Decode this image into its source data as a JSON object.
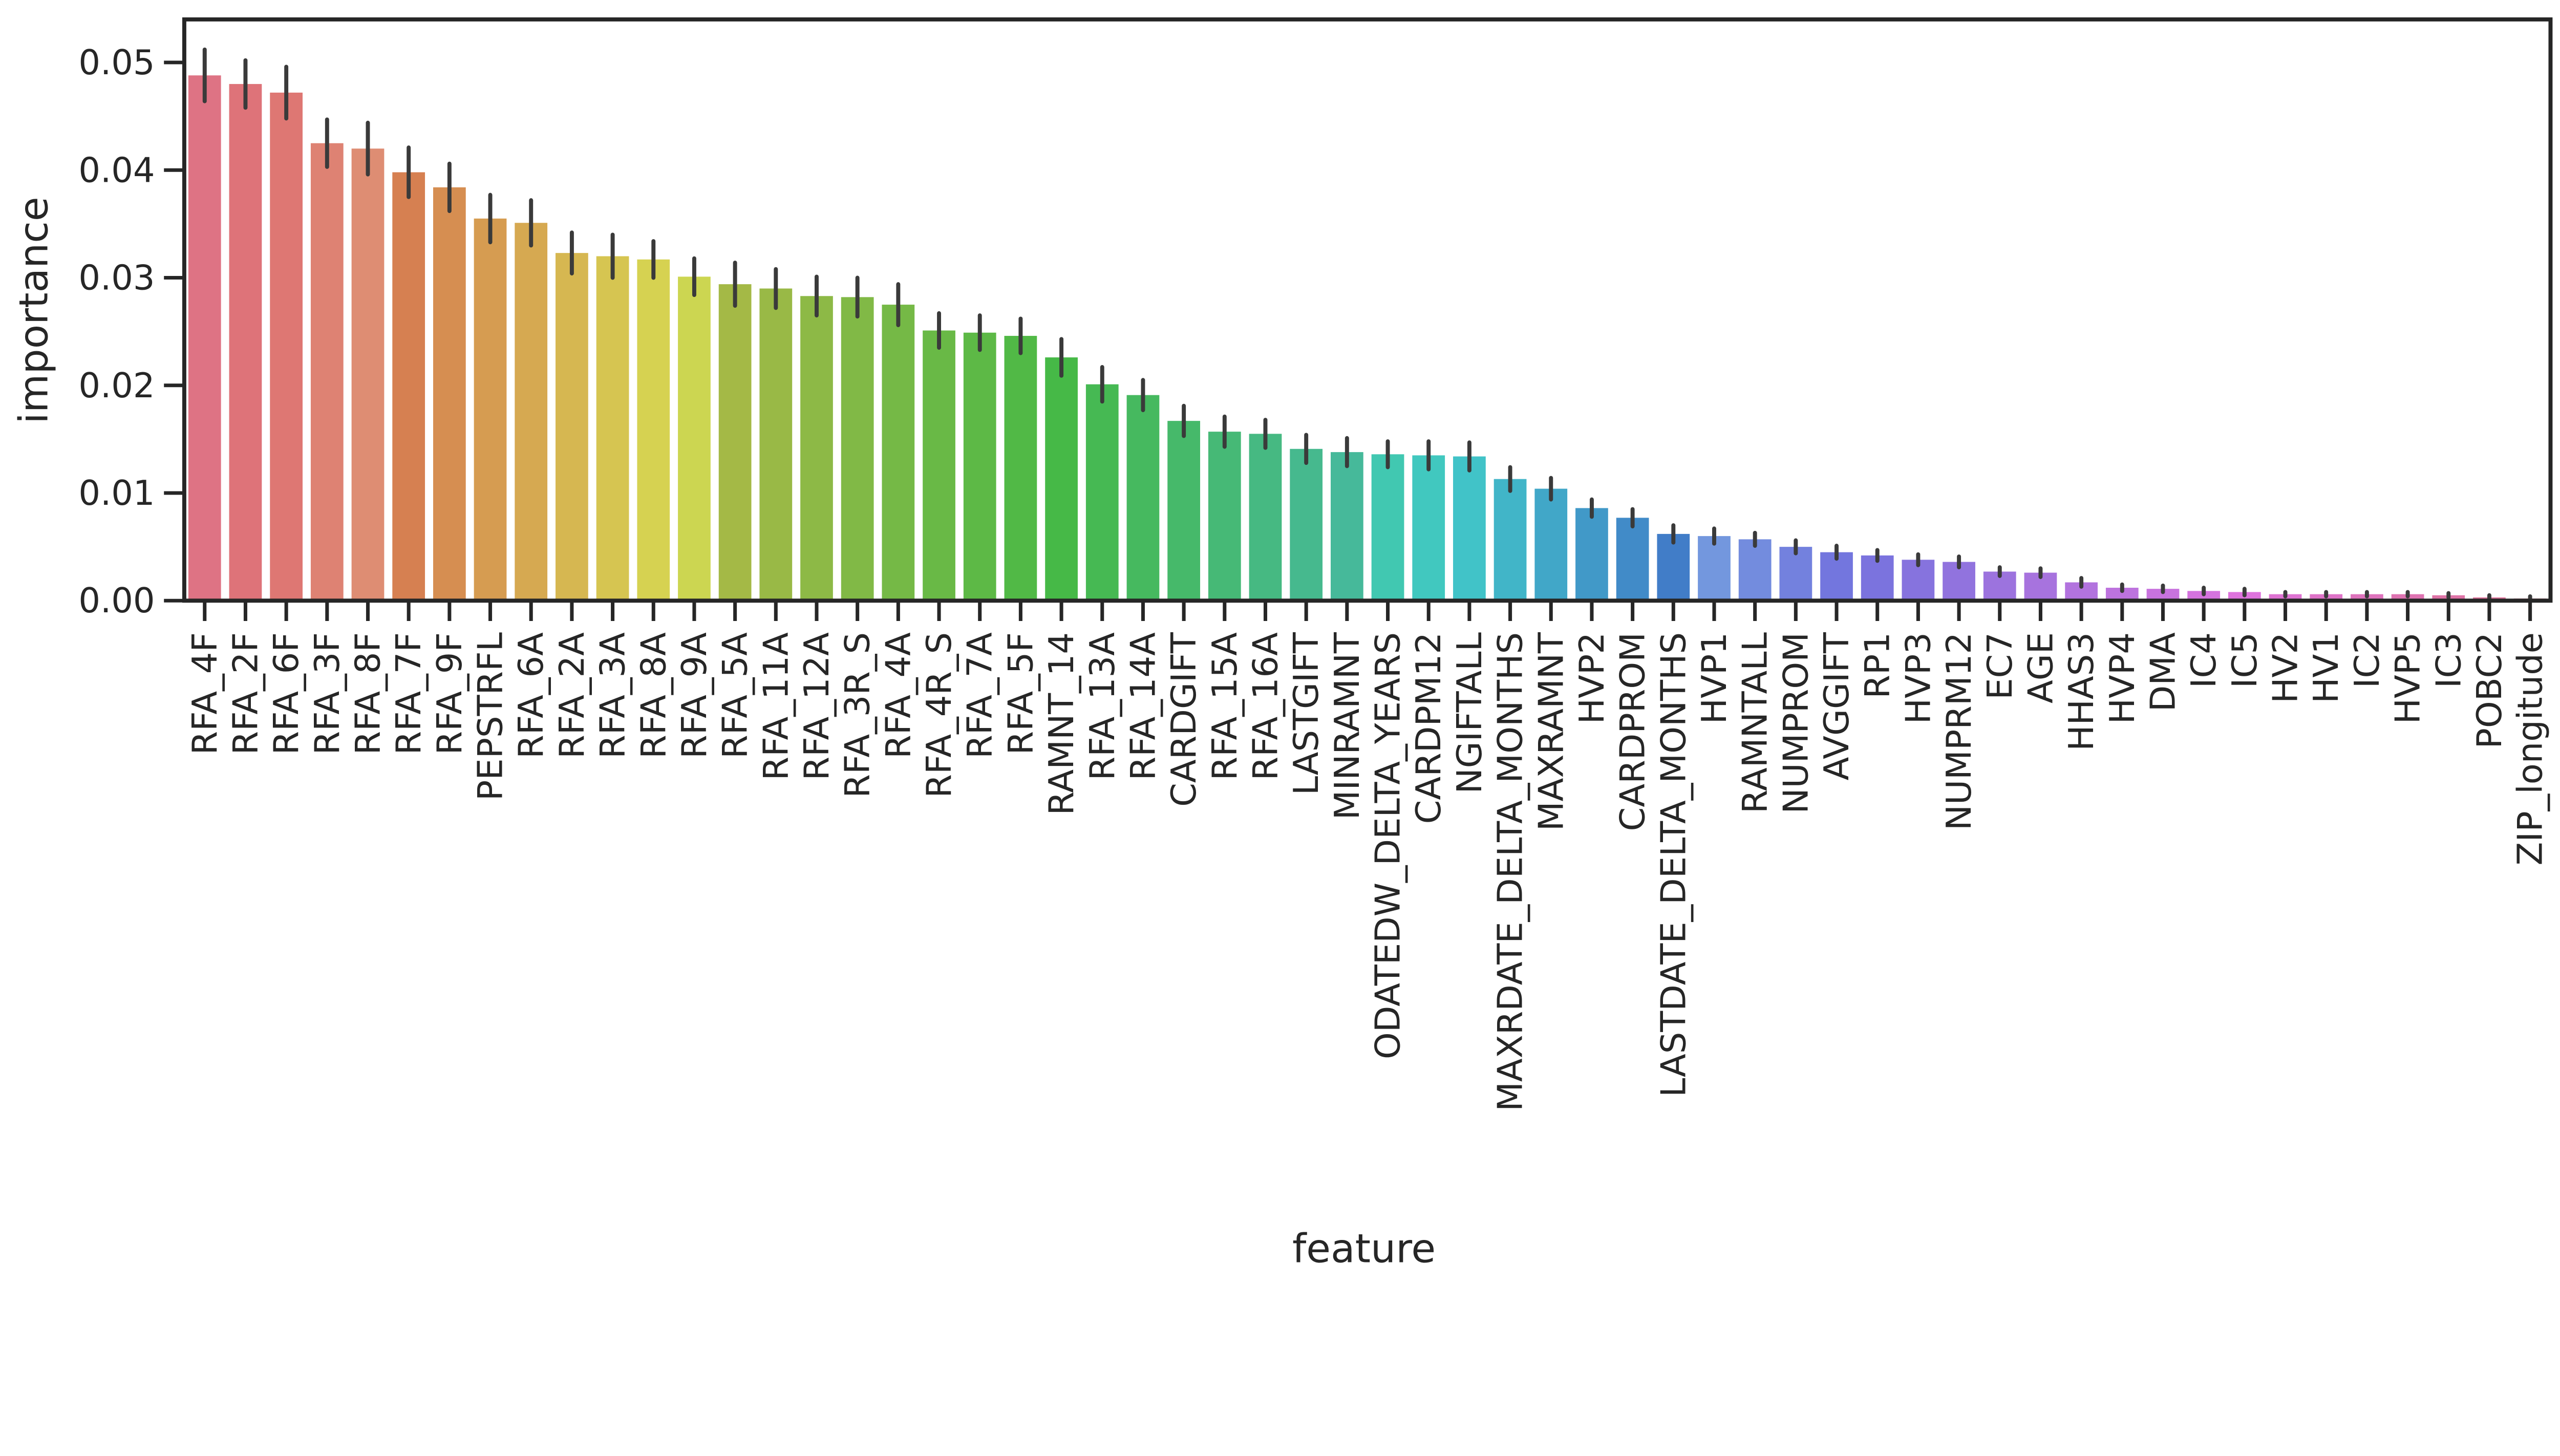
{
  "chart_data": {
    "type": "bar",
    "title": "",
    "xlabel": "feature",
    "ylabel": "importance",
    "ylim": [
      0,
      0.054
    ],
    "yticks": [
      "0.00",
      "0.01",
      "0.02",
      "0.03",
      "0.04",
      "0.05"
    ],
    "grid": false,
    "palette": "husl",
    "categories": [
      "RFA_4F",
      "RFA_2F",
      "RFA_6F",
      "RFA_3F",
      "RFA_8F",
      "RFA_7F",
      "RFA_9F",
      "PEPSTRFL",
      "RFA_6A",
      "RFA_2A",
      "RFA_3A",
      "RFA_8A",
      "RFA_9A",
      "RFA_5A",
      "RFA_11A",
      "RFA_12A",
      "RFA_3R_S",
      "RFA_4A",
      "RFA_4R_S",
      "RFA_7A",
      "RFA_5F",
      "RAMNT_14",
      "RFA_13A",
      "RFA_14A",
      "CARDGIFT",
      "RFA_15A",
      "RFA_16A",
      "LASTGIFT",
      "MINRAMNT",
      "ODATEDW_DELTA_YEARS",
      "CARDPM12",
      "NGIFTALL",
      "MAXRDATE_DELTA_MONTHS",
      "MAXRAMNT",
      "HVP2",
      "CARDPROM",
      "LASTDATE_DELTA_MONTHS",
      "HVP1",
      "RAMNTALL",
      "NUMPROM",
      "AVGGIFT",
      "RP1",
      "HVP3",
      "NUMPRM12",
      "EC7",
      "AGE",
      "HHAS3",
      "HVP4",
      "DMA",
      "IC4",
      "IC5",
      "HV2",
      "HV1",
      "IC2",
      "HVP5",
      "IC3",
      "POBC2",
      "ZIP_longitude"
    ],
    "values": [
      0.0488,
      0.048,
      0.0472,
      0.0425,
      0.042,
      0.0398,
      0.0384,
      0.0355,
      0.0351,
      0.0323,
      0.032,
      0.0317,
      0.0301,
      0.0294,
      0.029,
      0.0283,
      0.0282,
      0.0275,
      0.0251,
      0.0249,
      0.0246,
      0.0226,
      0.0201,
      0.0191,
      0.0167,
      0.0157,
      0.0155,
      0.0141,
      0.0138,
      0.0136,
      0.0135,
      0.0134,
      0.0113,
      0.0104,
      0.0086,
      0.0077,
      0.0062,
      0.006,
      0.0057,
      0.005,
      0.0045,
      0.0042,
      0.0038,
      0.0036,
      0.0027,
      0.0026,
      0.0017,
      0.0012,
      0.0011,
      0.0009,
      0.0008,
      0.0006,
      0.0006,
      0.0006,
      0.0006,
      0.0005,
      0.0003,
      0.0002
    ],
    "errors": [
      0.0024,
      0.0022,
      0.0024,
      0.0022,
      0.0024,
      0.0023,
      0.0022,
      0.0022,
      0.0021,
      0.0019,
      0.002,
      0.0017,
      0.0017,
      0.002,
      0.0018,
      0.0018,
      0.0018,
      0.0019,
      0.0016,
      0.0016,
      0.0016,
      0.0017,
      0.0016,
      0.0014,
      0.0014,
      0.0014,
      0.0013,
      0.0013,
      0.0013,
      0.0012,
      0.0013,
      0.0013,
      0.0011,
      0.001,
      0.0008,
      0.0008,
      0.0008,
      0.0007,
      0.0006,
      0.0006,
      0.0006,
      0.0005,
      0.0005,
      0.0005,
      0.0004,
      0.0004,
      0.0004,
      0.0003,
      0.0003,
      0.0003,
      0.0003,
      0.0002,
      0.0002,
      0.0002,
      0.0002,
      0.0002,
      0.0002,
      0.0002
    ]
  }
}
